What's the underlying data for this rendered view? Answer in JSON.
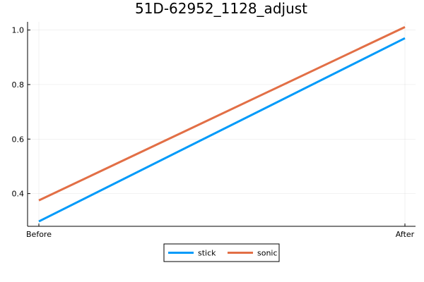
{
  "chart_data": {
    "type": "line",
    "title": "51D-62952_1128_adjust",
    "xlabel": "",
    "ylabel": "",
    "categories": [
      "Before",
      "After"
    ],
    "ylim": [
      0.28,
      1.03
    ],
    "yticks": [
      0.4,
      0.6,
      0.8,
      1.0
    ],
    "ytick_labels": [
      "0.4",
      "0.6",
      "0.8",
      "1.0"
    ],
    "grid": true,
    "legend_position": "bottom-center",
    "series": [
      {
        "name": "stick",
        "color": "#009af9",
        "values": [
          0.298,
          0.97
        ]
      },
      {
        "name": "sonic",
        "color": "#e26f46",
        "values": [
          0.375,
          1.011
        ]
      }
    ]
  }
}
